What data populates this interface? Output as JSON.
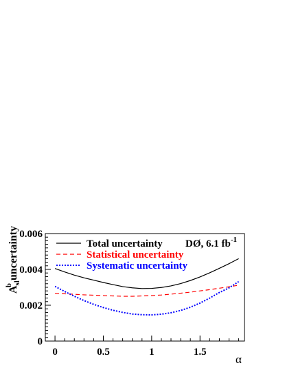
{
  "chart_data": {
    "type": "line",
    "x_ticks": [
      "0",
      "0.5",
      "1",
      "1.5"
    ],
    "x_tick_values": [
      0,
      0.5,
      1,
      1.5
    ],
    "y_ticks": [
      "0",
      "0.002",
      "0.004",
      "0.006"
    ],
    "y_tick_values": [
      0,
      0.002,
      0.004,
      0.006
    ],
    "xlim": [
      -0.1,
      1.96
    ],
    "ylim": [
      0,
      0.006
    ],
    "xlabel": "α",
    "ylabel": {
      "main": "A",
      "superscript": "b",
      "subscript": "sl",
      "rest": " uncertainty"
    },
    "annotation": {
      "main": "DØ, 6.1 fb",
      "superscript": "-1"
    },
    "legend_position": "top-right",
    "grid": false,
    "series": [
      {
        "name": "Total uncertainty",
        "color": "#000000",
        "dash": "solid",
        "x": [
          0,
          0.1,
          0.2,
          0.3,
          0.4,
          0.5,
          0.6,
          0.7,
          0.8,
          0.9,
          1.0,
          1.1,
          1.2,
          1.3,
          1.4,
          1.5,
          1.6,
          1.7,
          1.8,
          1.9
        ],
        "y": [
          0.00405,
          0.00386,
          0.00368,
          0.00353,
          0.0034,
          0.00327,
          0.00315,
          0.00304,
          0.00297,
          0.00293,
          0.00294,
          0.00299,
          0.00308,
          0.00321,
          0.00338,
          0.00358,
          0.00381,
          0.00406,
          0.00432,
          0.0046
        ]
      },
      {
        "name": "Statistical uncertainty",
        "color": "#ff0000",
        "dash": "dashed",
        "x": [
          0,
          0.1,
          0.2,
          0.3,
          0.4,
          0.5,
          0.6,
          0.7,
          0.8,
          0.9,
          1.0,
          1.1,
          1.2,
          1.3,
          1.4,
          1.5,
          1.6,
          1.7,
          1.8,
          1.9
        ],
        "y": [
          0.00267,
          0.00264,
          0.00261,
          0.00258,
          0.00256,
          0.00254,
          0.00252,
          0.0025,
          0.0025,
          0.00252,
          0.00254,
          0.00257,
          0.00262,
          0.00267,
          0.00273,
          0.0028,
          0.00287,
          0.00295,
          0.00303,
          0.00312
        ]
      },
      {
        "name": "Systematic uncertainty",
        "color": "#0000ff",
        "dash": "dotted",
        "x": [
          0,
          0.1,
          0.2,
          0.3,
          0.4,
          0.5,
          0.6,
          0.7,
          0.8,
          0.9,
          1.0,
          1.1,
          1.2,
          1.3,
          1.4,
          1.5,
          1.6,
          1.7,
          1.8,
          1.9
        ],
        "y": [
          0.00305,
          0.00277,
          0.0025,
          0.00226,
          0.00205,
          0.00187,
          0.00172,
          0.0016,
          0.00151,
          0.00147,
          0.00146,
          0.0015,
          0.00158,
          0.00171,
          0.00189,
          0.00212,
          0.0024,
          0.00271,
          0.00297,
          0.00332
        ]
      }
    ]
  }
}
